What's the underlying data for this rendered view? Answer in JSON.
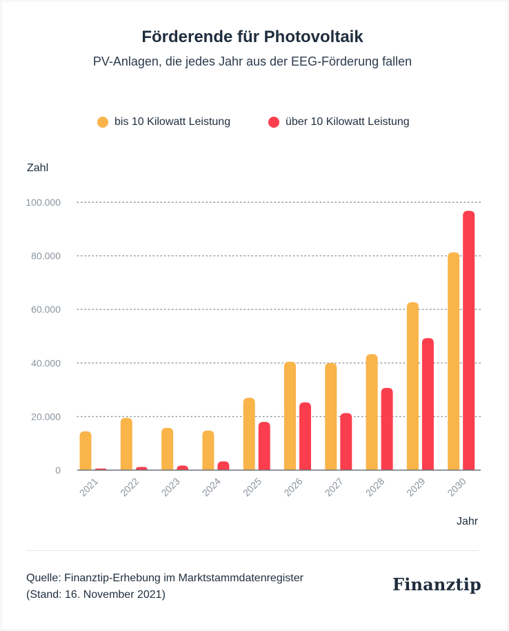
{
  "header": {
    "title": "Förderende für Photovoltaik",
    "subtitle": "PV-Anlagen, die jedes Jahr aus der EEG-Förderung fallen"
  },
  "legend": {
    "items": [
      {
        "label": "bis 10 Kilowatt Leistung",
        "color": "#f9b44a"
      },
      {
        "label": "über 10 Kilowatt Leistung",
        "color": "#fb3e4e"
      }
    ]
  },
  "axis": {
    "ylabel": "Zahl",
    "xlabel": "Jahr",
    "yticks": [
      "0",
      "20.000",
      "40.000",
      "60.000",
      "80.000",
      "100.000"
    ]
  },
  "footer": {
    "source_line1": "Quelle: Finanztip-Erhebung im Marktstammdatenregister",
    "source_line2": "(Stand: 16. November 2021)",
    "logo": "Finanztip"
  },
  "chart_data": {
    "type": "bar",
    "title": "Förderende für Photovoltaik",
    "subtitle": "PV-Anlagen, die jedes Jahr aus der EEG-Förderung fallen",
    "xlabel": "Jahr",
    "ylabel": "Zahl",
    "ylim": [
      0,
      100000
    ],
    "grid": true,
    "legend_position": "top",
    "categories": [
      "2021",
      "2022",
      "2023",
      "2024",
      "2025",
      "2026",
      "2027",
      "2028",
      "2029",
      "2030"
    ],
    "series": [
      {
        "name": "bis 10 Kilowatt Leistung",
        "color": "#f9b44a",
        "values": [
          14500,
          19500,
          15800,
          14800,
          27000,
          40500,
          40000,
          43300,
          62700,
          81300
        ]
      },
      {
        "name": "über 10 Kilowatt Leistung",
        "color": "#fb3e4e",
        "values": [
          600,
          1200,
          1700,
          3300,
          18000,
          25300,
          21300,
          30700,
          49300,
          96800
        ]
      }
    ]
  }
}
